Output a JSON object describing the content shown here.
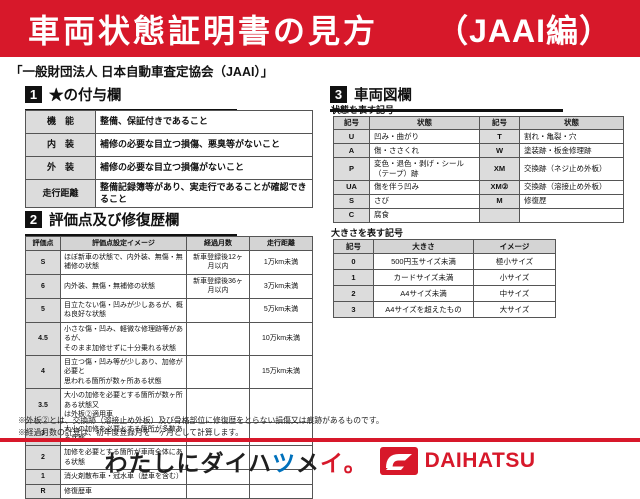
{
  "colors": {
    "accent_red": "#d7182a",
    "header_gray": "#d4d4d4",
    "label_gray": "#dcdcdc",
    "slogan_blue": "#0071bc"
  },
  "banner": {
    "title_main": "車両状態証明書の見方",
    "title_sub": "（JAAI編）"
  },
  "subtitle": "「一般財団法人 日本自動車査定協会（JAAI）」",
  "sections": {
    "star": {
      "num": "1",
      "title": "★の付与欄",
      "rows": [
        [
          "機　能",
          "整備、保証付きであること"
        ],
        [
          "内　装",
          "補修の必要な目立つ損傷、悪臭等がないこと"
        ],
        [
          "外　装",
          "補修の必要な目立つ損傷がないこと"
        ],
        [
          "走行距離",
          "整備記録簿等があり、実走行であることが確認できること"
        ]
      ]
    },
    "eval": {
      "num": "2",
      "title": "評価点及び修復歴欄",
      "headers": [
        "評価点",
        "評価点設定イメージ",
        "経過月数",
        "走行距離"
      ],
      "rows": [
        [
          "S",
          "ほぼ新車の状態で、内外装、無傷・無補修の状態",
          "新車登録後12ヶ月以内",
          "1万km未満"
        ],
        [
          "6",
          "内外装、無傷・無補修の状態",
          "新車登録後36ヶ月以内",
          "3万km未満"
        ],
        [
          "5",
          "目立たない傷・凹みが少しあるが、概ね良好な状態",
          "",
          "5万km未満"
        ],
        [
          "4.5",
          "小さな傷・凹み、軽微な修理跡等があるが、\nそのまま加修せずに十分乗れる状態",
          "",
          "10万km未満"
        ],
        [
          "4",
          "目立つ傷・凹み等が少しあり、加修が必要と\n思われる箇所が数ヶ所ある状態",
          "",
          "15万km未満"
        ],
        [
          "3.5",
          "大小の加修を必要とする箇所が数ヶ所ある状態又\nは外板②適用車",
          "",
          ""
        ],
        [
          "3",
          "大小の加修を必要とする箇所が多数ある状態",
          "",
          ""
        ],
        [
          "2",
          "加修を必要とする箇所が車両全体にある状態",
          "",
          ""
        ],
        [
          "1",
          "消火剤散布車・冠水車（歴車を含む）",
          "",
          ""
        ],
        [
          "R",
          "修復歴車",
          "",
          ""
        ]
      ]
    },
    "diagram": {
      "num": "3",
      "title": "車両図欄",
      "state_label": "状態を表す記号",
      "state_headers": [
        "記号",
        "状態",
        "記号",
        "状態"
      ],
      "state_rows": [
        [
          "U",
          "凹み・曲がり",
          "T",
          "割れ・亀裂・穴"
        ],
        [
          "A",
          "傷・ささくれ",
          "W",
          "塗装跡・板金修理跡"
        ],
        [
          "P",
          "変色・退色・剥げ・シール（テープ）跡",
          "XM",
          "交換跡（ネジ止め外板）"
        ],
        [
          "UA",
          "傷を伴う凹み",
          "XM②",
          "交換跡（溶接止め外板）"
        ],
        [
          "S",
          "さび",
          "M",
          "修復歴"
        ],
        [
          "C",
          "腐食",
          "",
          ""
        ]
      ],
      "size_label": "大きさを表す記号",
      "size_headers": [
        "記号",
        "大きさ",
        "イメージ"
      ],
      "size_rows": [
        [
          "0",
          "500円玉サイズ未満",
          "極小サイズ"
        ],
        [
          "1",
          "カードサイズ未満",
          "小サイズ"
        ],
        [
          "2",
          "A4サイズ未満",
          "中サイズ"
        ],
        [
          "3",
          "A4サイズを超えたもの",
          "大サイズ"
        ]
      ]
    }
  },
  "notes": [
    "※外板②とは、交換跡（溶接止め外板）及び骨格部位に修復歴をとらない損傷又は痕跡があるものです。",
    "※経過月数の計算は、初年度登録月を一ヶ月として計算します。"
  ],
  "footer": {
    "slogan_chars": [
      {
        "ch": "わ",
        "color": "#1f1f1f"
      },
      {
        "ch": "た",
        "color": "#1f1f1f"
      },
      {
        "ch": "し",
        "color": "#1f1f1f"
      },
      {
        "ch": "に",
        "color": "#1f1f1f"
      },
      {
        "ch": "ダ",
        "color": "#1f1f1f"
      },
      {
        "ch": "イ",
        "color": "#1f1f1f"
      },
      {
        "ch": "ハ",
        "color": "#1f1f1f"
      },
      {
        "ch": "ツ",
        "color": "#0071bc"
      },
      {
        "ch": "メ",
        "color": "#1f1f1f"
      },
      {
        "ch": "イ",
        "color": "#d7182a"
      },
      {
        "ch": "。",
        "color": "#d7182a"
      }
    ],
    "brand": "DAIHATSU"
  }
}
